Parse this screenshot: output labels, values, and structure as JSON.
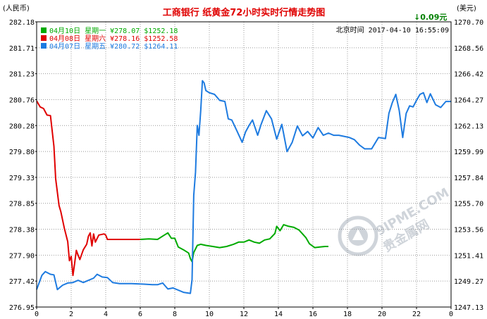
{
  "header": {
    "title": "工商银行  纸黄金72小时实时行情走势图",
    "left_unit": "(人民币)",
    "right_unit": "(美元)",
    "change": "↓0.09元",
    "timestamp": "北京时间  2017-04-10 16:55:09"
  },
  "watermark": {
    "text_top": "9IPME.COM",
    "text_bottom": "贵金属网"
  },
  "colors": {
    "line_0410": "#00aa00",
    "line_0408": "#e00000",
    "line_0407": "#1e7be0",
    "grid": "#999999",
    "axis": "#000000"
  },
  "chart_data": {
    "type": "line",
    "title": "工商银行  纸黄金72小时实时行情走势图",
    "xlabel": "",
    "ylabel": "(人民币)",
    "y2label": "(美元)",
    "xlim": [
      0,
      24
    ],
    "ylim": [
      276.95,
      282.18
    ],
    "y2lim": [
      1247.13,
      1270.7
    ],
    "x_ticks": [
      "0",
      "2",
      "4",
      "6",
      "8",
      "10",
      "12",
      "14",
      "16",
      "18",
      "20",
      "22",
      "0"
    ],
    "y_ticks_left": [
      "282.18",
      "281.71",
      "281.23",
      "280.76",
      "280.28",
      "279.80",
      "279.33",
      "278.85",
      "278.38",
      "277.90",
      "277.42",
      "276.95"
    ],
    "y_ticks_right": [
      "1270.70",
      "1268.56",
      "1266.42",
      "1264.27",
      "1262.13",
      "1259.99",
      "1257.84",
      "1255.70",
      "1253.56",
      "1251.41",
      "1249.27",
      "1247.13"
    ],
    "grid": true,
    "legend_position": "top-left",
    "series": [
      {
        "name": "04月10日  星期一  ¥278.07  $1252.18",
        "color": "#00aa00",
        "points": [
          [
            6.0,
            278.19
          ],
          [
            6.5,
            278.2
          ],
          [
            7.0,
            278.19
          ],
          [
            7.3,
            278.25
          ],
          [
            7.6,
            278.31
          ],
          [
            7.8,
            278.21
          ],
          [
            8.0,
            278.21
          ],
          [
            8.2,
            278.05
          ],
          [
            8.5,
            278.0
          ],
          [
            8.8,
            277.94
          ],
          [
            8.9,
            277.84
          ],
          [
            9.0,
            277.78
          ],
          [
            9.1,
            277.95
          ],
          [
            9.3,
            278.08
          ],
          [
            9.5,
            278.1
          ],
          [
            9.8,
            278.08
          ],
          [
            10.2,
            278.06
          ],
          [
            10.6,
            278.04
          ],
          [
            11.0,
            278.06
          ],
          [
            11.4,
            278.1
          ],
          [
            11.7,
            278.14
          ],
          [
            12.0,
            278.14
          ],
          [
            12.3,
            278.18
          ],
          [
            12.6,
            278.14
          ],
          [
            12.9,
            278.12
          ],
          [
            13.2,
            278.18
          ],
          [
            13.5,
            278.2
          ],
          [
            13.8,
            278.3
          ],
          [
            13.9,
            278.43
          ],
          [
            14.1,
            278.35
          ],
          [
            14.3,
            278.46
          ],
          [
            14.6,
            278.43
          ],
          [
            14.9,
            278.41
          ],
          [
            15.2,
            278.36
          ],
          [
            15.4,
            278.29
          ],
          [
            15.6,
            278.22
          ],
          [
            15.8,
            278.11
          ],
          [
            16.1,
            278.04
          ],
          [
            16.4,
            278.05
          ],
          [
            16.7,
            278.06
          ],
          [
            16.9,
            278.06
          ]
        ]
      },
      {
        "name": "04月08日  星期六  ¥278.16  $1252.58",
        "color": "#e00000",
        "points": [
          [
            0.0,
            280.73
          ],
          [
            0.2,
            280.62
          ],
          [
            0.4,
            280.59
          ],
          [
            0.6,
            280.47
          ],
          [
            0.8,
            280.46
          ],
          [
            1.0,
            279.9
          ],
          [
            1.1,
            279.3
          ],
          [
            1.3,
            278.81
          ],
          [
            1.4,
            278.7
          ],
          [
            1.6,
            278.4
          ],
          [
            1.8,
            278.15
          ],
          [
            1.9,
            277.8
          ],
          [
            2.0,
            277.88
          ],
          [
            2.1,
            277.53
          ],
          [
            2.2,
            277.75
          ],
          [
            2.3,
            277.99
          ],
          [
            2.4,
            277.9
          ],
          [
            2.5,
            277.82
          ],
          [
            2.7,
            278.0
          ],
          [
            2.9,
            278.1
          ],
          [
            3.0,
            278.25
          ],
          [
            3.1,
            278.31
          ],
          [
            3.2,
            278.07
          ],
          [
            3.3,
            278.29
          ],
          [
            3.4,
            278.14
          ],
          [
            3.6,
            278.27
          ],
          [
            3.9,
            278.29
          ],
          [
            4.0,
            278.27
          ],
          [
            4.1,
            278.19
          ],
          [
            5.0,
            278.19
          ],
          [
            6.0,
            278.19
          ]
        ]
      },
      {
        "name": "04月07日  星期五  ¥280.72  $1264.11",
        "color": "#1e7be0",
        "points": [
          [
            0.0,
            277.27
          ],
          [
            0.3,
            277.53
          ],
          [
            0.5,
            277.6
          ],
          [
            0.8,
            277.55
          ],
          [
            1.0,
            277.54
          ],
          [
            1.2,
            277.27
          ],
          [
            1.5,
            277.35
          ],
          [
            1.8,
            277.39
          ],
          [
            2.1,
            277.4
          ],
          [
            2.4,
            277.44
          ],
          [
            2.7,
            277.4
          ],
          [
            3.0,
            277.44
          ],
          [
            3.3,
            277.48
          ],
          [
            3.5,
            277.55
          ],
          [
            3.8,
            277.5
          ],
          [
            4.1,
            277.49
          ],
          [
            4.4,
            277.4
          ],
          [
            4.8,
            277.38
          ],
          [
            5.5,
            277.38
          ],
          [
            6.2,
            277.37
          ],
          [
            6.7,
            277.36
          ],
          [
            7.0,
            277.36
          ],
          [
            7.3,
            277.39
          ],
          [
            7.6,
            277.28
          ],
          [
            7.9,
            277.3
          ],
          [
            8.2,
            277.26
          ],
          [
            8.5,
            277.22
          ],
          [
            8.9,
            277.2
          ],
          [
            9.0,
            277.45
          ],
          [
            9.1,
            279.0
          ],
          [
            9.2,
            279.42
          ],
          [
            9.3,
            280.28
          ],
          [
            9.4,
            280.1
          ],
          [
            9.5,
            280.55
          ],
          [
            9.6,
            281.1
          ],
          [
            9.7,
            281.06
          ],
          [
            9.8,
            280.92
          ],
          [
            10.0,
            280.88
          ],
          [
            10.3,
            280.85
          ],
          [
            10.6,
            280.74
          ],
          [
            10.9,
            280.72
          ],
          [
            11.1,
            280.4
          ],
          [
            11.3,
            280.38
          ],
          [
            11.6,
            280.18
          ],
          [
            11.9,
            279.97
          ],
          [
            12.1,
            280.16
          ],
          [
            12.3,
            280.28
          ],
          [
            12.5,
            280.38
          ],
          [
            12.8,
            280.1
          ],
          [
            13.0,
            280.3
          ],
          [
            13.3,
            280.55
          ],
          [
            13.6,
            280.4
          ],
          [
            13.9,
            280.03
          ],
          [
            14.2,
            280.3
          ],
          [
            14.5,
            279.8
          ],
          [
            14.8,
            279.97
          ],
          [
            15.1,
            280.27
          ],
          [
            15.4,
            280.09
          ],
          [
            15.7,
            280.17
          ],
          [
            16.0,
            280.05
          ],
          [
            16.3,
            280.24
          ],
          [
            16.6,
            280.1
          ],
          [
            16.9,
            280.14
          ],
          [
            17.2,
            280.1
          ],
          [
            17.5,
            280.1
          ],
          [
            17.8,
            280.08
          ],
          [
            18.1,
            280.06
          ],
          [
            18.4,
            280.02
          ],
          [
            18.7,
            279.92
          ],
          [
            19.0,
            279.85
          ],
          [
            19.4,
            279.85
          ],
          [
            19.8,
            280.06
          ],
          [
            20.2,
            280.04
          ],
          [
            20.4,
            280.5
          ],
          [
            20.6,
            280.7
          ],
          [
            20.8,
            280.85
          ],
          [
            21.0,
            280.55
          ],
          [
            21.2,
            280.06
          ],
          [
            21.4,
            280.5
          ],
          [
            21.6,
            280.64
          ],
          [
            21.8,
            280.62
          ],
          [
            22.0,
            280.74
          ],
          [
            22.2,
            280.85
          ],
          [
            22.4,
            280.88
          ],
          [
            22.6,
            280.7
          ],
          [
            22.8,
            280.86
          ],
          [
            23.1,
            280.66
          ],
          [
            23.4,
            280.61
          ],
          [
            23.7,
            280.72
          ],
          [
            24.0,
            280.72
          ]
        ]
      }
    ]
  }
}
